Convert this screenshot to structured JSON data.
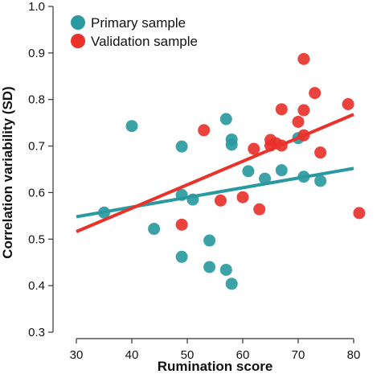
{
  "chart_data": {
    "type": "scatter",
    "xlabel": "Rumination score",
    "ylabel": "Correlation variability (SD)",
    "xlim": [
      25,
      83
    ],
    "ylim": [
      0.3,
      1.0
    ],
    "x_ticks": [
      30,
      40,
      50,
      60,
      70,
      80
    ],
    "y_ticks": [
      0.3,
      0.4,
      0.5,
      0.6,
      0.7,
      0.8,
      0.9,
      1.0
    ],
    "x_tick_labels": [
      "30",
      "40",
      "50",
      "60",
      "70",
      "80"
    ],
    "y_tick_labels": [
      "0.3",
      "0.4",
      "0.5",
      "0.6",
      "0.7",
      "0.8",
      "0.9",
      "1.0"
    ],
    "grid": false,
    "legend_position": "top-left",
    "series": [
      {
        "name": "Primary sample",
        "color": "#2a9aa0",
        "points": [
          {
            "x": 35,
            "y": 0.557
          },
          {
            "x": 40,
            "y": 0.743
          },
          {
            "x": 44,
            "y": 0.522
          },
          {
            "x": 49,
            "y": 0.699
          },
          {
            "x": 49,
            "y": 0.595
          },
          {
            "x": 49,
            "y": 0.462
          },
          {
            "x": 51,
            "y": 0.585
          },
          {
            "x": 54,
            "y": 0.497
          },
          {
            "x": 54,
            "y": 0.44
          },
          {
            "x": 57,
            "y": 0.758
          },
          {
            "x": 57,
            "y": 0.434
          },
          {
            "x": 58,
            "y": 0.714
          },
          {
            "x": 58,
            "y": 0.703
          },
          {
            "x": 58,
            "y": 0.404
          },
          {
            "x": 61,
            "y": 0.646
          },
          {
            "x": 64,
            "y": 0.63
          },
          {
            "x": 67,
            "y": 0.648
          },
          {
            "x": 70,
            "y": 0.717
          },
          {
            "x": 71,
            "y": 0.634
          },
          {
            "x": 74,
            "y": 0.625
          }
        ],
        "fit": {
          "x": [
            30,
            80
          ],
          "y": [
            0.548,
            0.652
          ]
        }
      },
      {
        "name": "Validation sample",
        "color": "#e8322b",
        "points": [
          {
            "x": 49,
            "y": 0.531
          },
          {
            "x": 53,
            "y": 0.734
          },
          {
            "x": 56,
            "y": 0.583
          },
          {
            "x": 60,
            "y": 0.59
          },
          {
            "x": 62,
            "y": 0.694
          },
          {
            "x": 63,
            "y": 0.564
          },
          {
            "x": 65,
            "y": 0.713
          },
          {
            "x": 65,
            "y": 0.701
          },
          {
            "x": 66,
            "y": 0.706
          },
          {
            "x": 67,
            "y": 0.779
          },
          {
            "x": 67,
            "y": 0.701
          },
          {
            "x": 70,
            "y": 0.752
          },
          {
            "x": 71,
            "y": 0.887
          },
          {
            "x": 71,
            "y": 0.777
          },
          {
            "x": 71,
            "y": 0.723
          },
          {
            "x": 73,
            "y": 0.814
          },
          {
            "x": 74,
            "y": 0.686
          },
          {
            "x": 79,
            "y": 0.79
          },
          {
            "x": 81,
            "y": 0.556
          }
        ],
        "fit": {
          "x": [
            30,
            80
          ],
          "y": [
            0.516,
            0.768
          ]
        }
      }
    ]
  }
}
